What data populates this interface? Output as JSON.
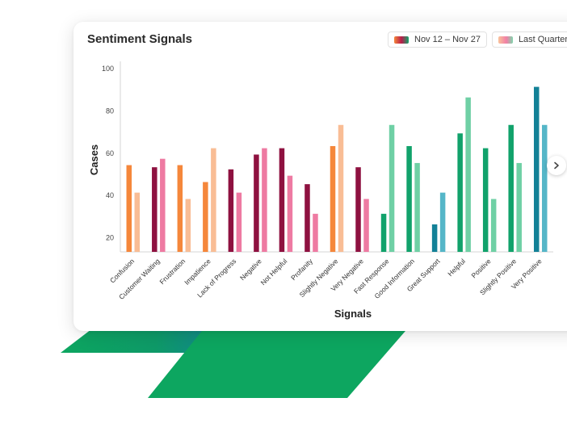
{
  "card": {
    "title": "Sentiment Signals"
  },
  "legend": [
    {
      "label": "Nov 12 – Nov 27"
    },
    {
      "label": "Last Quarter"
    }
  ],
  "colors": {
    "negative_current": "#8e1140",
    "negative_previous": "#ee7aa2",
    "neutral_current": "#f5873b",
    "neutral_previous": "#f9bd95",
    "positive_current": "#11a26b",
    "positive_previous": "#6fd0a5",
    "very_positive_current": "#138197",
    "very_positive_previous": "#55b6c8",
    "deco_green": "#0da660",
    "deco_teal": "#138197"
  },
  "chart_data": {
    "type": "bar",
    "xlabel": "Signals",
    "ylabel": "Cases",
    "ylim": [
      13,
      100
    ],
    "yticks": [
      20,
      40,
      60,
      80,
      100
    ],
    "grid": false,
    "legend_position": "top-right",
    "categories": [
      "Confusion",
      "Customer Waiting",
      "Frustration",
      "Impatience",
      "Lack of Progress",
      "Negative",
      "Not Helpful",
      "Profanity",
      "Slightly Negative",
      "Very Negative",
      "Fast Response",
      "Good Information",
      "Great Support",
      "Helpful",
      "Positive",
      "Slightly Positive",
      "Very Positive"
    ],
    "category_groups": [
      "neutral",
      "negative",
      "neutral",
      "neutral",
      "negative",
      "negative",
      "negative",
      "negative",
      "neutral",
      "negative",
      "positive",
      "positive",
      "very_positive",
      "positive",
      "positive",
      "positive",
      "very_positive"
    ],
    "series": [
      {
        "name": "Nov 12 – Nov 27",
        "values": [
          54,
          53,
          54,
          46,
          52,
          59,
          62,
          45,
          63,
          53,
          31,
          63,
          26,
          69,
          62,
          73,
          91
        ]
      },
      {
        "name": "Last Quarter",
        "values": [
          41,
          57,
          38,
          62,
          41,
          62,
          49,
          31,
          73,
          38,
          73,
          55,
          41,
          86,
          38,
          55,
          73
        ]
      }
    ]
  }
}
